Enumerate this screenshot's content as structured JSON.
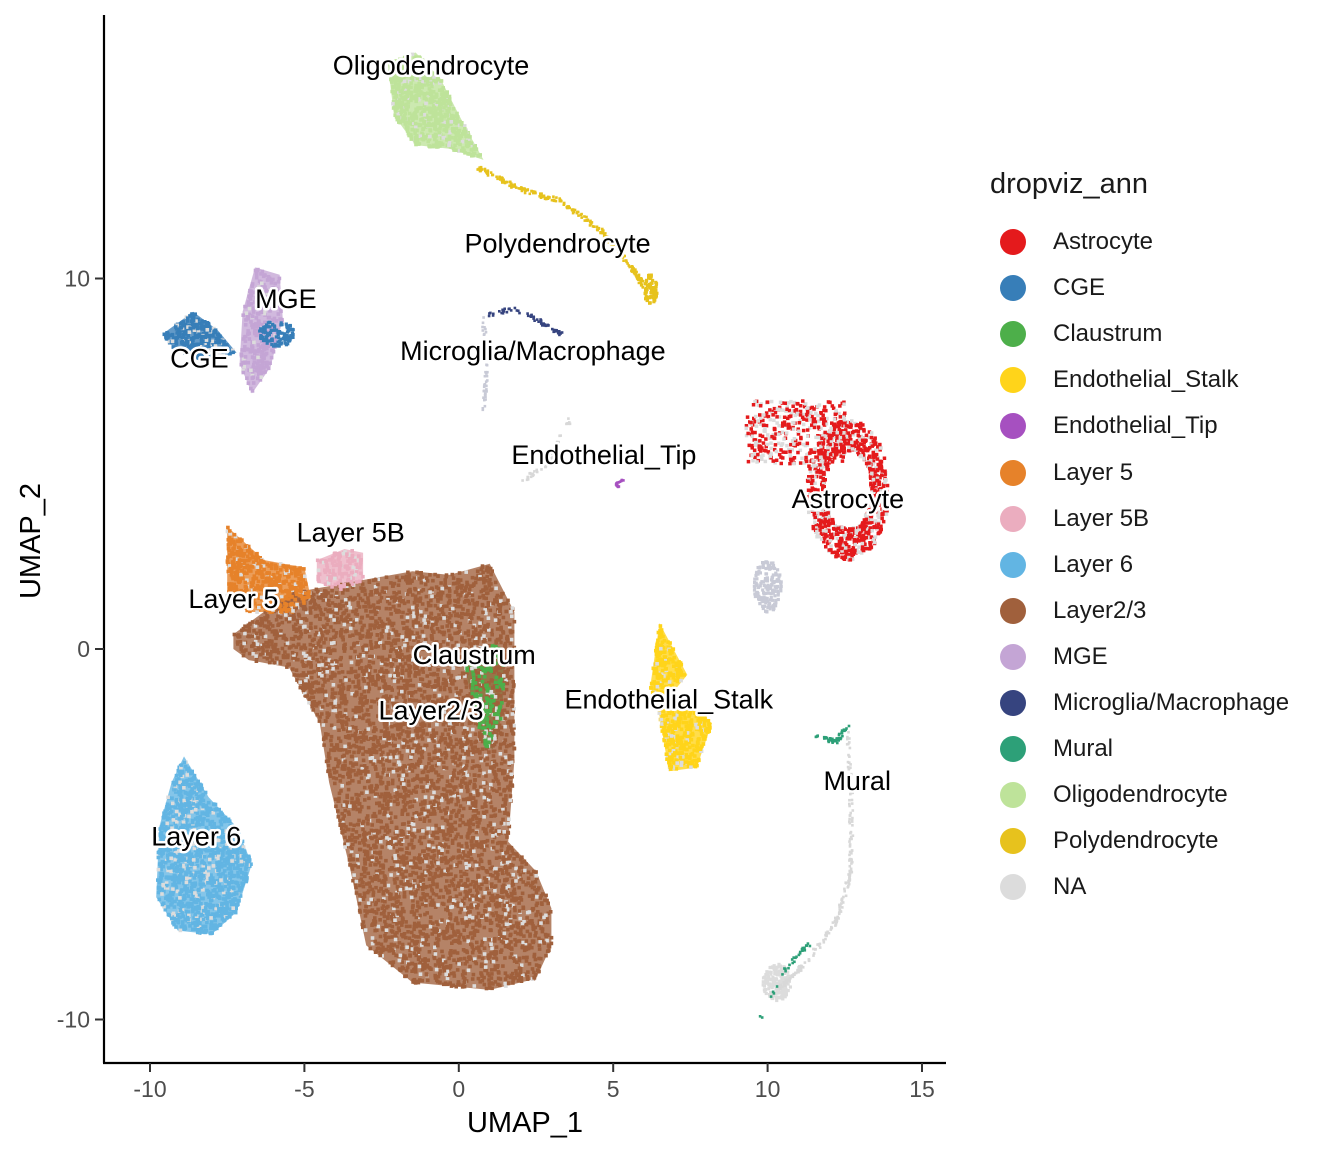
{
  "chart_data": {
    "type": "scatter",
    "xlabel": "UMAP_1",
    "ylabel": "UMAP_2",
    "xlim": [
      -11.5,
      15.8
    ],
    "ylim": [
      -11.2,
      17.0
    ],
    "xticks": [
      -10,
      -5,
      0,
      5,
      10,
      15
    ],
    "yticks": [
      -10,
      0,
      10
    ],
    "xtick_labels": [
      "-10",
      "-5",
      "0",
      "5",
      "10",
      "15"
    ],
    "ytick_labels": [
      "-10",
      "0",
      "10"
    ],
    "legend_title": "dropviz_ann",
    "legend_position": "right",
    "categories": [
      {
        "name": "Astrocyte",
        "color": "#E41A1C"
      },
      {
        "name": "CGE",
        "color": "#377EB8"
      },
      {
        "name": "Claustrum",
        "color": "#4DAF4A"
      },
      {
        "name": "Endothelial_Stalk",
        "color": "#FFD41A"
      },
      {
        "name": "Endothelial_Tip",
        "color": "#A650C0"
      },
      {
        "name": "Layer 5",
        "color": "#E6822A"
      },
      {
        "name": "Layer 5B",
        "color": "#EBADBF"
      },
      {
        "name": "Layer 6",
        "color": "#62B5E3"
      },
      {
        "name": "Layer2/3",
        "color": "#A0603C"
      },
      {
        "name": "MGE",
        "color": "#C4A5D5"
      },
      {
        "name": "Microglia/Macrophage",
        "color": "#36447F"
      },
      {
        "name": "Mural",
        "color": "#2DA078"
      },
      {
        "name": "Oligodendrocyte",
        "color": "#BEE39A"
      },
      {
        "name": "Polydendrocyte",
        "color": "#E7C21D"
      },
      {
        "name": "NA",
        "color": "#DCDCDC"
      }
    ],
    "cluster_labels": [
      {
        "text": "Oligodendrocyte",
        "x": -0.9,
        "y": 15.5
      },
      {
        "text": "Polydendrocyte",
        "x": 3.2,
        "y": 10.7
      },
      {
        "text": "MGE",
        "x": -5.6,
        "y": 9.2
      },
      {
        "text": "CGE",
        "x": -8.4,
        "y": 7.6
      },
      {
        "text": "Microglia/Macrophage",
        "x": 2.4,
        "y": 7.8
      },
      {
        "text": "Endothelial_Tip",
        "x": 4.7,
        "y": 5.0
      },
      {
        "text": "Astrocyte",
        "x": 12.6,
        "y": 3.8
      },
      {
        "text": "Layer 5B",
        "x": -3.5,
        "y": 2.9
      },
      {
        "text": "Layer 5",
        "x": -7.3,
        "y": 1.1
      },
      {
        "text": "Claustrum",
        "x": 0.5,
        "y": -0.4
      },
      {
        "text": "Layer2/3",
        "x": -0.9,
        "y": -1.9
      },
      {
        "text": "Endothelial_Stalk",
        "x": 6.8,
        "y": -1.6
      },
      {
        "text": "Mural",
        "x": 12.9,
        "y": -3.8
      },
      {
        "text": "Layer 6",
        "x": -8.5,
        "y": -5.3
      }
    ],
    "clusters": [
      {
        "name": "Layer2/3",
        "outline": [
          [
            -7.3,
            0.4
          ],
          [
            -5.5,
            1.5
          ],
          [
            -1.5,
            2.1
          ],
          [
            -0.3,
            2.0
          ],
          [
            1.0,
            2.3
          ],
          [
            1.8,
            1.0
          ],
          [
            1.8,
            -3.0
          ],
          [
            1.6,
            -5.2
          ],
          [
            2.5,
            -6.0
          ],
          [
            3.0,
            -7.0
          ],
          [
            3.0,
            -8.0
          ],
          [
            2.5,
            -8.9
          ],
          [
            1.0,
            -9.2
          ],
          [
            -1.5,
            -9.0
          ],
          [
            -3.0,
            -8.0
          ],
          [
            -3.5,
            -6.0
          ],
          [
            -4.2,
            -3.6
          ],
          [
            -4.5,
            -2.0
          ],
          [
            -5.5,
            -0.5
          ],
          [
            -6.8,
            -0.3
          ],
          [
            -7.3,
            0.0
          ]
        ],
        "n": 5200
      },
      {
        "name": "Layer 5",
        "outline": [
          [
            -7.5,
            3.3
          ],
          [
            -6.3,
            2.4
          ],
          [
            -5.0,
            2.2
          ],
          [
            -4.8,
            1.4
          ],
          [
            -5.3,
            1.0
          ],
          [
            -6.8,
            1.0
          ],
          [
            -7.5,
            1.3
          ]
        ],
        "n": 520
      },
      {
        "name": "Layer 5B",
        "outline": [
          [
            -4.6,
            2.4
          ],
          [
            -3.7,
            2.7
          ],
          [
            -3.1,
            2.6
          ],
          [
            -3.1,
            1.8
          ],
          [
            -3.8,
            1.6
          ],
          [
            -4.6,
            1.8
          ]
        ],
        "n": 140
      },
      {
        "name": "Claustrum",
        "outline": [
          [
            0.2,
            -0.5
          ],
          [
            1.2,
            0.2
          ],
          [
            1.5,
            -0.3
          ],
          [
            1.4,
            -1.8
          ],
          [
            1.1,
            -2.7
          ],
          [
            0.8,
            -2.6
          ],
          [
            0.4,
            -1.3
          ]
        ],
        "n": 160
      },
      {
        "name": "Layer 6",
        "outline": [
          [
            -8.9,
            -2.9
          ],
          [
            -8.1,
            -4.0
          ],
          [
            -7.2,
            -4.8
          ],
          [
            -6.7,
            -5.8
          ],
          [
            -7.2,
            -7.1
          ],
          [
            -8.0,
            -7.7
          ],
          [
            -9.1,
            -7.6
          ],
          [
            -9.8,
            -6.7
          ],
          [
            -9.7,
            -4.8
          ],
          [
            -9.3,
            -3.6
          ]
        ],
        "n": 1300
      },
      {
        "name": "Astrocyte",
        "outline": [
          [
            -0.0,
            0.0
          ]
        ],
        "n": 0
      },
      {
        "name": "CGE",
        "outline": [
          [
            -9.6,
            8.5
          ],
          [
            -8.6,
            9.1
          ],
          [
            -7.8,
            8.6
          ],
          [
            -7.2,
            8.0
          ],
          [
            -8.2,
            7.7
          ],
          [
            -9.2,
            8.1
          ]
        ],
        "n": 320
      },
      {
        "name": "MGE",
        "outline": [
          [
            -6.6,
            10.3
          ],
          [
            -5.8,
            10.1
          ],
          [
            -5.7,
            8.9
          ],
          [
            -6.1,
            7.6
          ],
          [
            -6.7,
            6.9
          ],
          [
            -7.1,
            7.7
          ],
          [
            -7.0,
            9.1
          ]
        ],
        "n": 300
      },
      {
        "name": "Oligodendrocyte",
        "outline": [
          [
            -2.3,
            15.8
          ],
          [
            -1.4,
            16.1
          ],
          [
            -0.6,
            15.4
          ],
          [
            0.2,
            14.1
          ],
          [
            0.8,
            13.2
          ],
          [
            -0.3,
            13.5
          ],
          [
            -1.4,
            13.6
          ],
          [
            -2.1,
            14.4
          ]
        ],
        "n": 700
      },
      {
        "name": "Endothelial_Stalk",
        "outline": [
          [
            6.5,
            0.7
          ],
          [
            7.4,
            -0.7
          ],
          [
            6.9,
            -1.2
          ],
          [
            8.2,
            -2.0
          ],
          [
            7.7,
            -3.2
          ],
          [
            6.8,
            -3.3
          ],
          [
            6.5,
            -1.8
          ],
          [
            6.2,
            -1.0
          ]
        ],
        "n": 520
      }
    ]
  }
}
